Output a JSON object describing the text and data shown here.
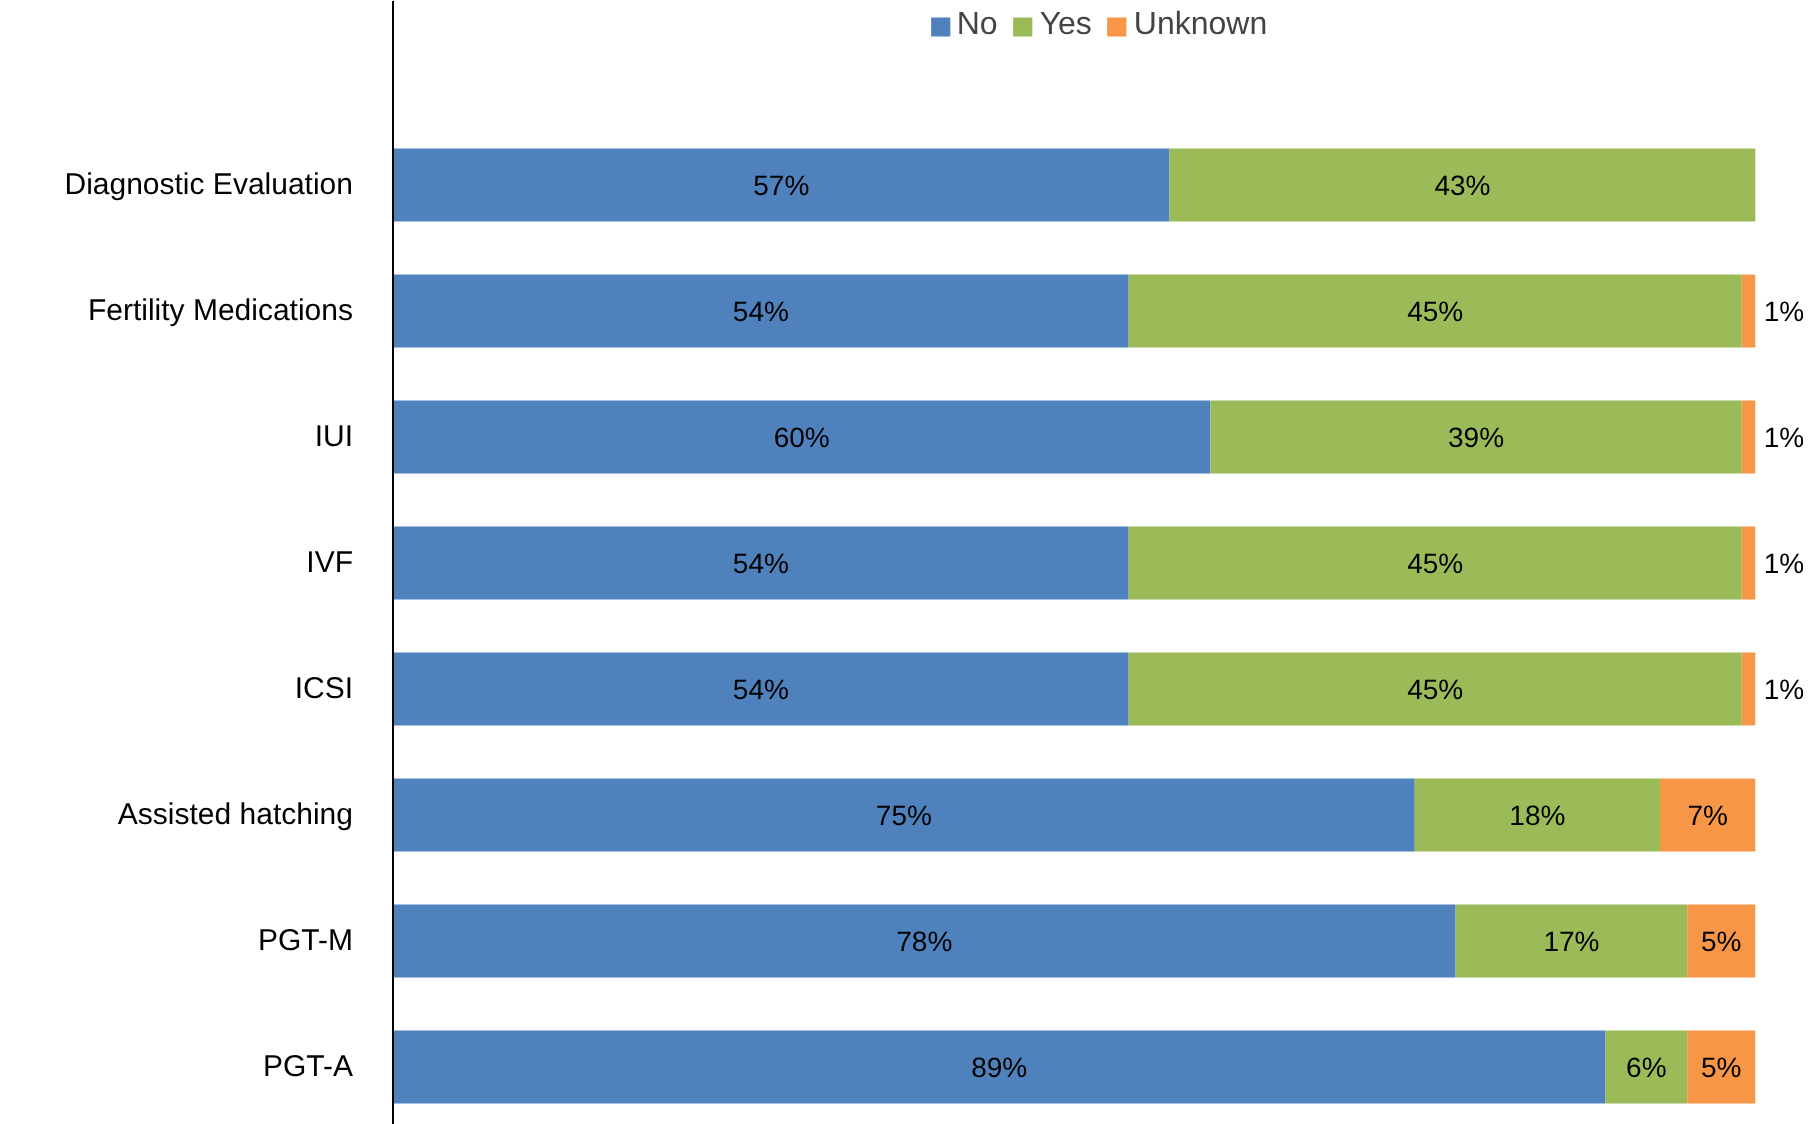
{
  "chart_data": {
    "type": "bar",
    "orientation": "horizontal",
    "stacked": true,
    "legend": "top",
    "tick_labels": "y",
    "grid": false,
    "categories": [
      "Diagnostic Evaluation",
      "Fertility Medications",
      "IUI",
      "IVF",
      "ICSI",
      "Assisted hatching",
      "PGT-M",
      "PGT-A"
    ],
    "series": [
      {
        "name": "No",
        "color": "#4f81bd",
        "values": [
          57,
          54,
          60,
          54,
          54,
          75,
          78,
          89
        ],
        "value_labels": [
          "57%",
          "54%",
          "60%",
          "54%",
          "54%",
          "75%",
          "78%",
          "89%"
        ]
      },
      {
        "name": "Yes",
        "color": "#9bbb59",
        "values": [
          43,
          45,
          39,
          45,
          45,
          18,
          17,
          6
        ],
        "value_labels": [
          "43%",
          "45%",
          "39%",
          "45%",
          "45%",
          "18%",
          "17%",
          "6%"
        ]
      },
      {
        "name": "Unknown",
        "color": "#f79646",
        "values": [
          null,
          1,
          1,
          1,
          1,
          7,
          5,
          5
        ],
        "value_labels": [
          null,
          "1%",
          "1%",
          "1%",
          "1%",
          "7%",
          "5%",
          "5%"
        ]
      }
    ]
  }
}
